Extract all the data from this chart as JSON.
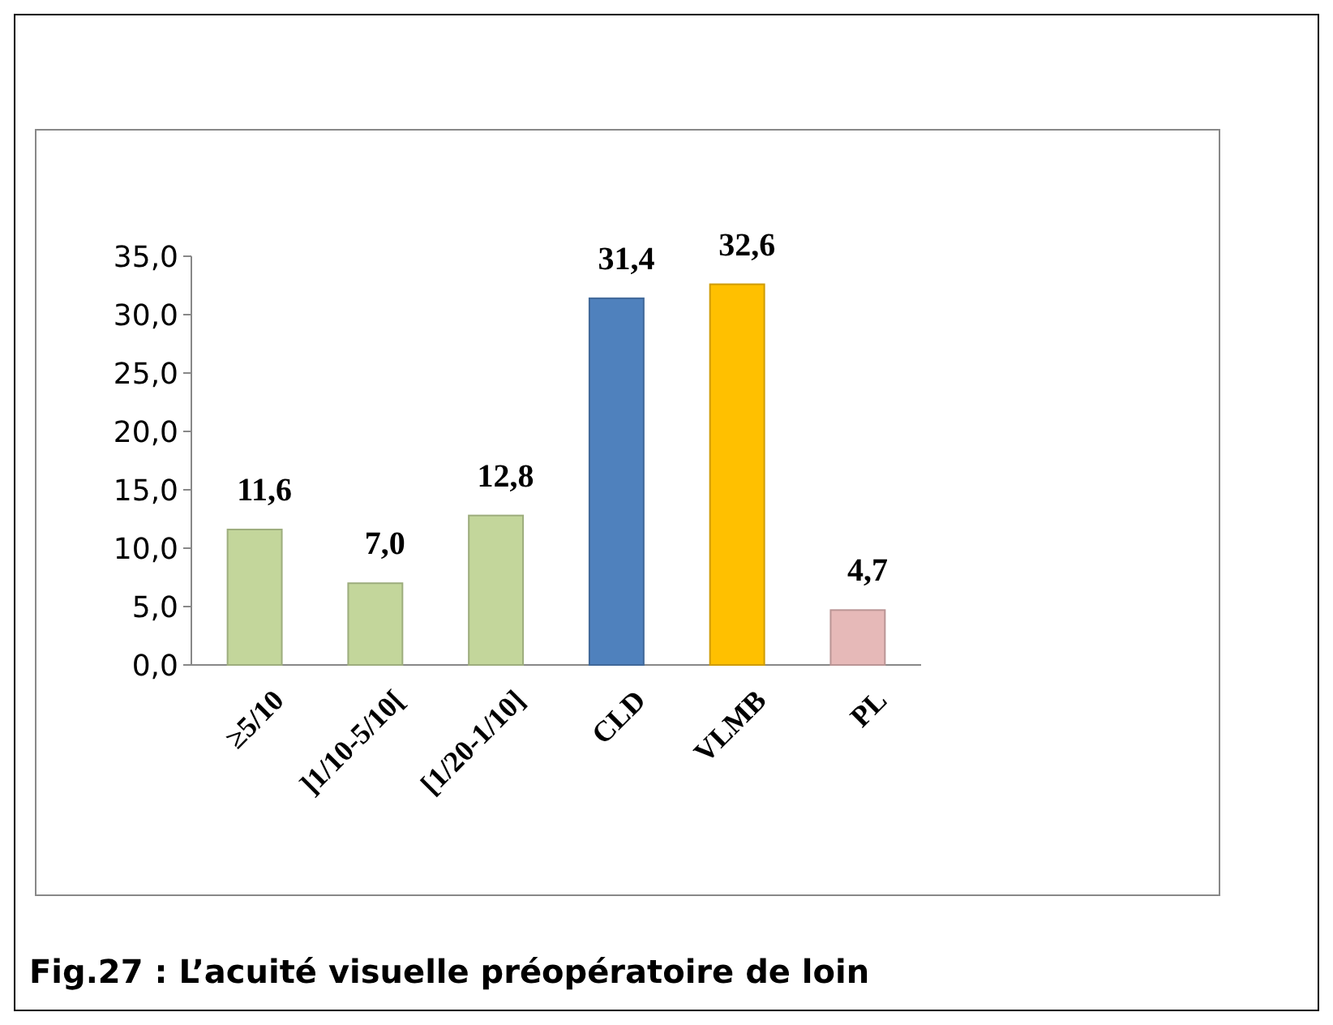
{
  "chart_data": {
    "type": "bar",
    "categories": [
      "≥5/10",
      "]1/10-5/10[",
      "[1/20-1/10]",
      "CLD",
      "VLMB",
      "PL"
    ],
    "values": [
      11.6,
      7.0,
      12.8,
      31.4,
      32.6,
      4.7
    ],
    "colors": [
      "#c3d69b",
      "#c3d69b",
      "#c3d69b",
      "#4f81bd",
      "#ffc000",
      "#e6b9b8"
    ],
    "value_labels": [
      "11,6",
      "7,0",
      "12,8",
      "31,4",
      "32,6",
      "4,7"
    ],
    "ylim": [
      0,
      35
    ],
    "yticks": [
      {
        "value": 0,
        "label": "0,0"
      },
      {
        "value": 5,
        "label": "5,0"
      },
      {
        "value": 10,
        "label": "10,0"
      },
      {
        "value": 15,
        "label": "15,0"
      },
      {
        "value": 20,
        "label": "20,0"
      },
      {
        "value": 25,
        "label": "25,0"
      },
      {
        "value": 30,
        "label": "30,0"
      },
      {
        "value": 35,
        "label": "35,0"
      }
    ],
    "grid": false,
    "annotations": [
      "Fig.27 : L’acuité visuelle préopératoire de loin"
    ]
  }
}
